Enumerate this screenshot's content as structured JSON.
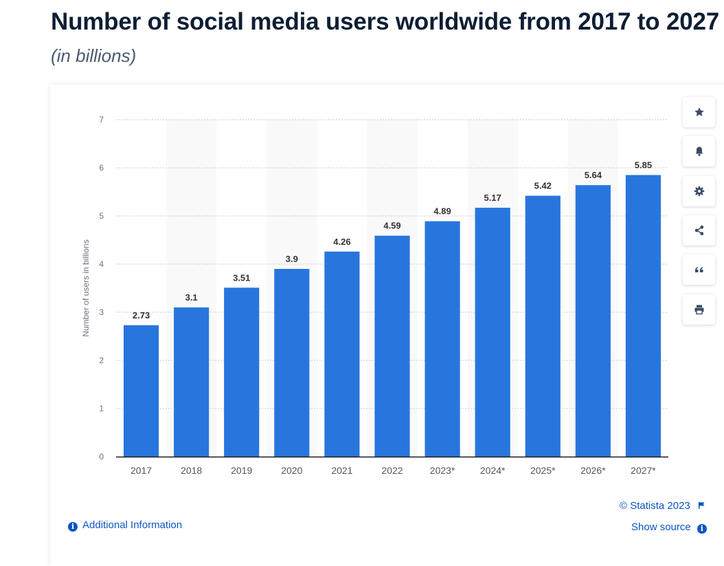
{
  "header": {
    "title": "Number of social media users worldwide from 2017 to 2027",
    "subtitle": "(in billions)"
  },
  "chart_data": {
    "type": "bar",
    "categories": [
      "2017",
      "2018",
      "2019",
      "2020",
      "2021",
      "2022",
      "2023*",
      "2024*",
      "2025*",
      "2026*",
      "2027*"
    ],
    "values": [
      2.73,
      3.1,
      3.51,
      3.9,
      4.26,
      4.59,
      4.89,
      5.17,
      5.42,
      5.64,
      5.85
    ],
    "value_labels": [
      "2.73",
      "3.1",
      "3.51",
      "3.9",
      "4.26",
      "4.59",
      "4.89",
      "5.17",
      "5.42",
      "5.64",
      "5.85"
    ],
    "ylabel": "Number of users in billions",
    "ylim": [
      0,
      7
    ],
    "yticks": [
      "0",
      "1",
      "2",
      "3",
      "4",
      "5",
      "6",
      "7"
    ],
    "grid": true,
    "bar_color": "#2876dd",
    "alt_band_color": "#f9f9f9"
  },
  "toolbar": {
    "buttons": [
      {
        "icon": "star-icon",
        "name": "favorite-button"
      },
      {
        "icon": "bell-icon",
        "name": "notification-button"
      },
      {
        "icon": "gear-icon",
        "name": "settings-button"
      },
      {
        "icon": "share-icon",
        "name": "share-button"
      },
      {
        "icon": "quote-icon",
        "name": "cite-button"
      },
      {
        "icon": "print-icon",
        "name": "print-button"
      }
    ]
  },
  "footer": {
    "copyright": "© Statista 2023",
    "show_source": "Show source",
    "additional_info": "Additional Information"
  },
  "colors": {
    "accent": "#0a55c4",
    "title": "#0e1e33",
    "icon": "#3b4d66"
  }
}
